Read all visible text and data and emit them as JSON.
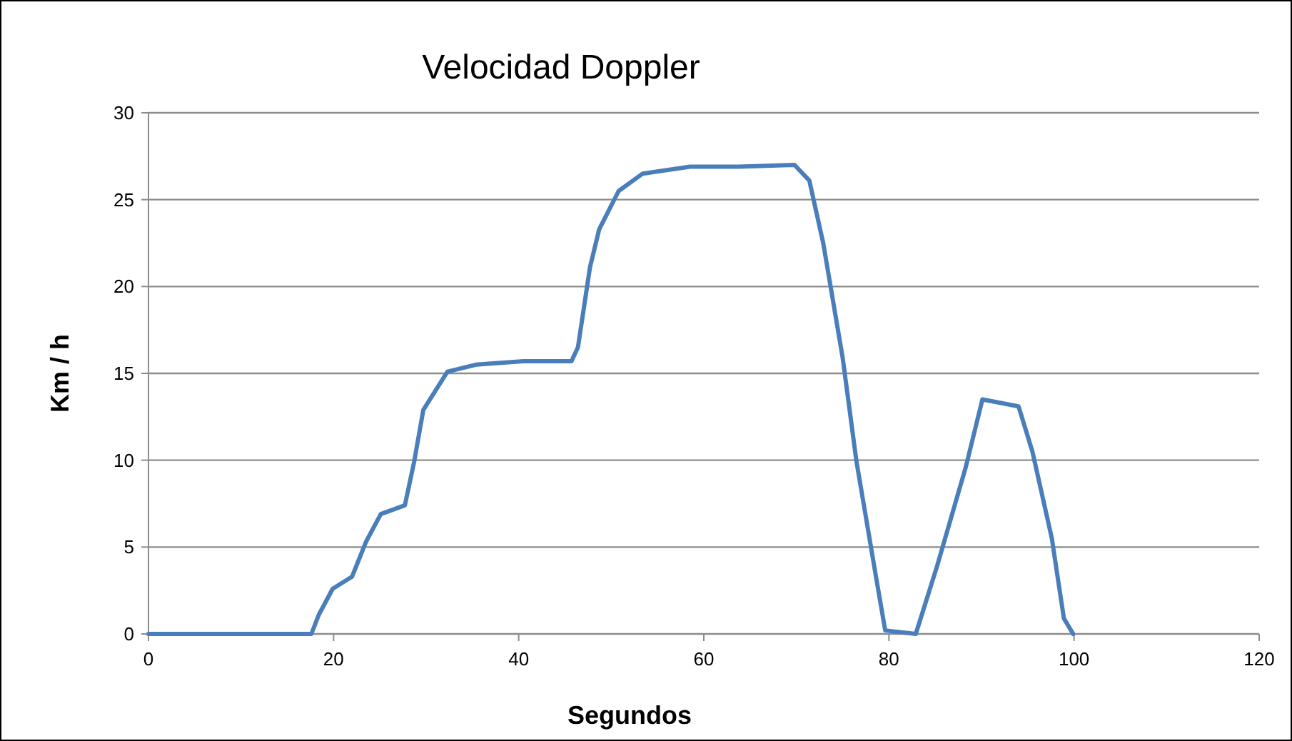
{
  "chart_data": {
    "type": "line",
    "title": "Velocidad Doppler",
    "xlabel": "Segundos",
    "ylabel": "Km / h",
    "xlim": [
      0,
      120
    ],
    "xticks": [
      0,
      20,
      40,
      60,
      80,
      100,
      120
    ],
    "ylim": [
      0,
      30
    ],
    "yticks": [
      0,
      5,
      10,
      15,
      20,
      25,
      30
    ],
    "grid": "y",
    "marker": "none",
    "line_style": "solid",
    "series": [
      {
        "color": "#4a7ebb",
        "x": [
          0,
          17.6,
          18.4,
          19.9,
          22.0,
          23.5,
          25.1,
          27.7,
          28.7,
          29.7,
          32.3,
          35.4,
          40.5,
          45.7,
          46.4,
          47.7,
          48.7,
          50.8,
          53.4,
          58.5,
          63.7,
          69.8,
          71.4,
          72.9,
          75.0,
          76.5,
          78.6,
          79.6,
          82.9,
          85.2,
          88.3,
          90.1,
          94.0,
          95.5,
          97.6,
          98.9,
          99.9
        ],
        "values": [
          0,
          0,
          1.1,
          2.6,
          3.3,
          5.3,
          6.9,
          7.4,
          9.9,
          12.9,
          15.1,
          15.5,
          15.7,
          15.7,
          16.5,
          21.1,
          23.3,
          25.5,
          26.5,
          26.9,
          26.9,
          27.0,
          26.1,
          22.5,
          15.9,
          9.9,
          3.3,
          0.2,
          0,
          3.9,
          9.6,
          13.5,
          13.1,
          10.5,
          5.5,
          0.9,
          0
        ]
      }
    ]
  }
}
